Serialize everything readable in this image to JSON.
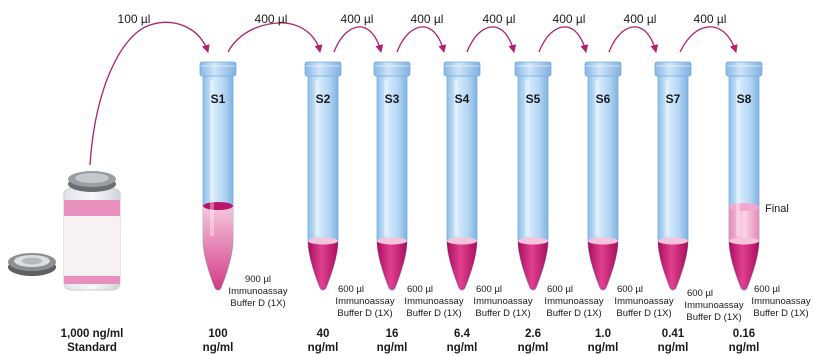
{
  "transfers": [
    "100 µl",
    "400 µl",
    "400 µl",
    "400 µl",
    "400 µl",
    "400 µl",
    "400 µl",
    "400 µl"
  ],
  "tubes": [
    {
      "id": "S1",
      "buffer_volume": "900 µl",
      "buffer_line1": "Immunoassay",
      "buffer_line2": "Buffer D (1X)",
      "conc": "100",
      "unit": "ng/ml"
    },
    {
      "id": "S2",
      "buffer_volume": "600 µl",
      "buffer_line1": "Immunoassay",
      "buffer_line2": "Buffer D (1X)",
      "conc": "40",
      "unit": "ng/ml"
    },
    {
      "id": "S3",
      "buffer_volume": "600 µl",
      "buffer_line1": "Immunoassay",
      "buffer_line2": "Buffer D (1X)",
      "conc": "16",
      "unit": "ng/ml"
    },
    {
      "id": "S4",
      "buffer_volume": "600 µl",
      "buffer_line1": "Immunoassay",
      "buffer_line2": "Buffer D (1X)",
      "conc": "6.4",
      "unit": "ng/ml"
    },
    {
      "id": "S5",
      "buffer_volume": "600 µl",
      "buffer_line1": "Immunoassay",
      "buffer_line2": "Buffer D (1X)",
      "conc": "2.6",
      "unit": "ng/ml"
    },
    {
      "id": "S6",
      "buffer_volume": "600 µl",
      "buffer_line1": "Immunoassay",
      "buffer_line2": "Buffer D (1X)",
      "conc": "1.0",
      "unit": "ng/ml"
    },
    {
      "id": "S7",
      "buffer_volume": "600 µl",
      "buffer_line1": "Immunoassay",
      "buffer_line2": "Buffer D (1X)",
      "conc": "0.41",
      "unit": "ng/ml"
    },
    {
      "id": "S8",
      "buffer_volume": "600 µl",
      "buffer_line1": "Immunoassay",
      "buffer_line2": "Buffer D (1X)",
      "conc": "0.16",
      "unit": "ng/ml"
    }
  ],
  "stock": {
    "conc": "1,000 ng/ml",
    "label": "Standard"
  },
  "final_label": "Final",
  "colors": {
    "tube_light": "#cfe6fb",
    "tube_mid": "#a9d0f2",
    "tube_dark": "#7fb2e0",
    "cap": "#9ec6ec",
    "liquid_dark": "#c4166f",
    "liquid_light": "#f3a9cf",
    "arrow": "#b0206e",
    "vial_label": "#f7eef3",
    "vial_band": "#e58ab6"
  }
}
